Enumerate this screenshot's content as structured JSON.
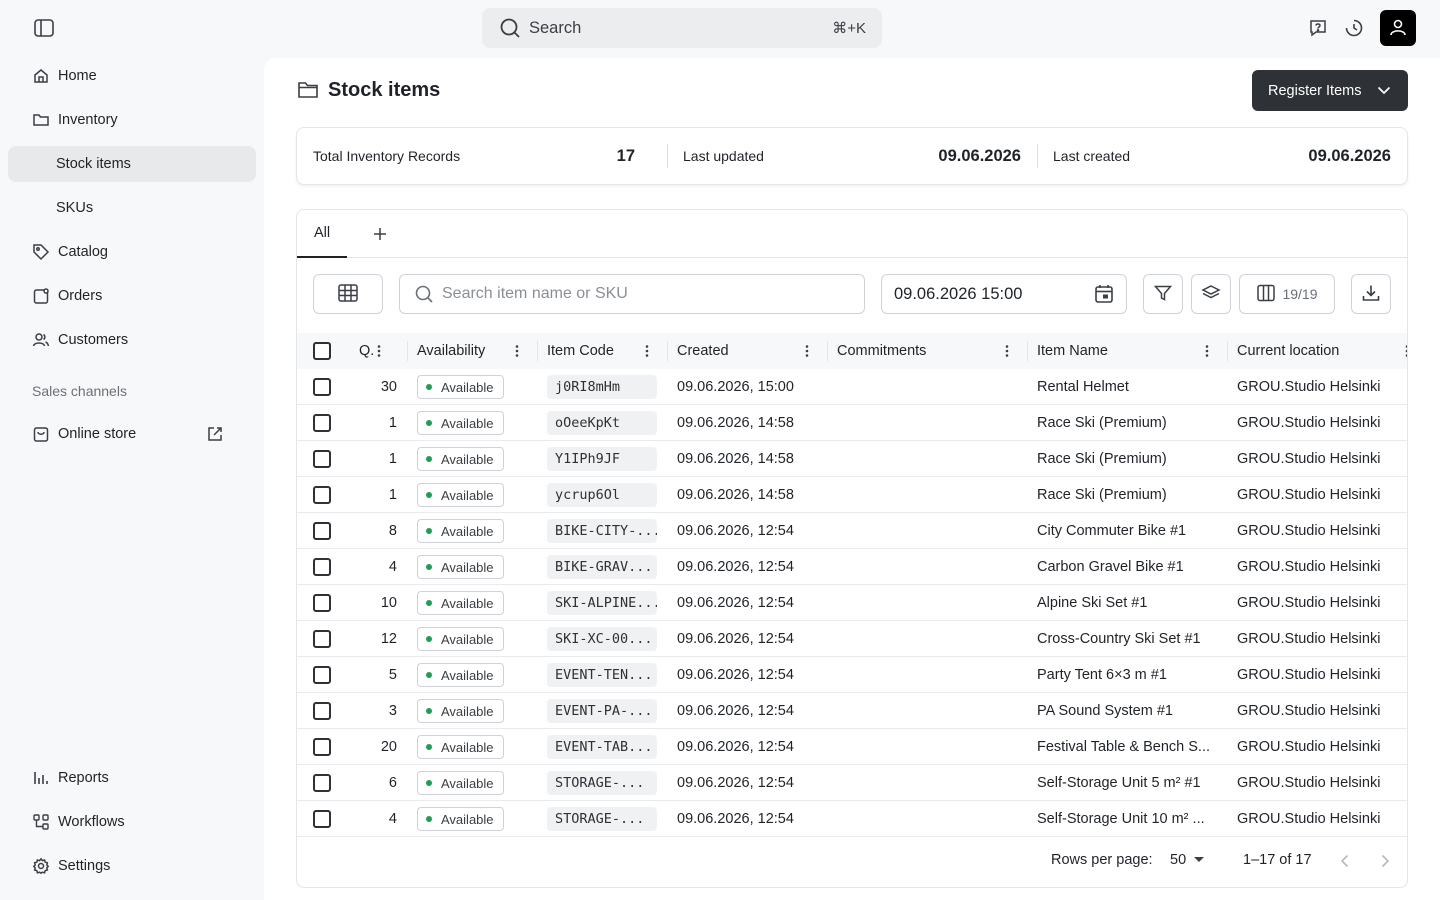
{
  "topbar": {
    "search_label": "Search",
    "search_shortcut": "⌘+K",
    "icons": [
      "sidebar-toggle-icon",
      "help-icon",
      "history-icon",
      "user-icon"
    ]
  },
  "sidebar": {
    "items": [
      {
        "label": "Home",
        "icon": "home-icon"
      },
      {
        "label": "Inventory",
        "icon": "folder-icon"
      },
      {
        "label": "Stock items",
        "active": true
      },
      {
        "label": "SKUs"
      },
      {
        "label": "Catalog",
        "icon": "tag-icon"
      },
      {
        "label": "Orders",
        "icon": "orders-icon"
      },
      {
        "label": "Customers",
        "icon": "users-icon"
      }
    ],
    "section_label": "Sales channels",
    "online_store": "Online store",
    "bottom_items": [
      {
        "label": "Reports",
        "icon": "chart-icon"
      },
      {
        "label": "Workflows",
        "icon": "workflow-icon"
      },
      {
        "label": "Settings",
        "icon": "gear-icon"
      }
    ]
  },
  "page": {
    "title": "Stock items",
    "register_button": "Register Items"
  },
  "stats": {
    "total_label": "Total Inventory Records",
    "total_value": "17",
    "updated_label": "Last updated",
    "updated_value": "09.06.2026",
    "created_label": "Last created",
    "created_value": "09.06.2026"
  },
  "tabs": {
    "all_label": "All"
  },
  "toolbar": {
    "search_placeholder": "Search item name or SKU",
    "date_value": "09.06.2026 15:00",
    "columns_count": "19/19"
  },
  "table": {
    "headers": {
      "qty": "Q.",
      "availability": "Availability",
      "item_code": "Item Code",
      "created": "Created",
      "commitments": "Commitments",
      "item_name": "Item Name",
      "location": "Current location"
    },
    "rows": [
      {
        "qty": "30",
        "status": "Available",
        "code": "j0RI8mHm",
        "created": "09.06.2026, 15:00",
        "commitments": "",
        "name": "Rental Helmet",
        "location": "GROU.Studio Helsinki"
      },
      {
        "qty": "1",
        "status": "Available",
        "code": "oOeeKpKt",
        "created": "09.06.2026, 14:58",
        "commitments": "",
        "name": "Race Ski (Premium)",
        "location": "GROU.Studio Helsinki"
      },
      {
        "qty": "1",
        "status": "Available",
        "code": "Y1IPh9JF",
        "created": "09.06.2026, 14:58",
        "commitments": "",
        "name": "Race Ski (Premium)",
        "location": "GROU.Studio Helsinki"
      },
      {
        "qty": "1",
        "status": "Available",
        "code": "ycrup6Ol",
        "created": "09.06.2026, 14:58",
        "commitments": "",
        "name": "Race Ski (Premium)",
        "location": "GROU.Studio Helsinki"
      },
      {
        "qty": "8",
        "status": "Available",
        "code": "BIKE-CITY-...",
        "created": "09.06.2026, 12:54",
        "commitments": "",
        "name": "City Commuter Bike #1",
        "location": "GROU.Studio Helsinki"
      },
      {
        "qty": "4",
        "status": "Available",
        "code": "BIKE-GRAV...",
        "created": "09.06.2026, 12:54",
        "commitments": "",
        "name": "Carbon Gravel Bike #1",
        "location": "GROU.Studio Helsinki"
      },
      {
        "qty": "10",
        "status": "Available",
        "code": "SKI-ALPINE...",
        "created": "09.06.2026, 12:54",
        "commitments": "",
        "name": "Alpine Ski Set #1",
        "location": "GROU.Studio Helsinki"
      },
      {
        "qty": "12",
        "status": "Available",
        "code": "SKI-XC-00...",
        "created": "09.06.2026, 12:54",
        "commitments": "",
        "name": "Cross-Country Ski Set #1",
        "location": "GROU.Studio Helsinki"
      },
      {
        "qty": "5",
        "status": "Available",
        "code": "EVENT-TEN...",
        "created": "09.06.2026, 12:54",
        "commitments": "",
        "name": "Party Tent 6×3 m #1",
        "location": "GROU.Studio Helsinki"
      },
      {
        "qty": "3",
        "status": "Available",
        "code": "EVENT-PA-...",
        "created": "09.06.2026, 12:54",
        "commitments": "",
        "name": "PA Sound System #1",
        "location": "GROU.Studio Helsinki"
      },
      {
        "qty": "20",
        "status": "Available",
        "code": "EVENT-TAB...",
        "created": "09.06.2026, 12:54",
        "commitments": "",
        "name": "Festival Table & Bench S...",
        "location": "GROU.Studio Helsinki"
      },
      {
        "qty": "6",
        "status": "Available",
        "code": "STORAGE-...",
        "created": "09.06.2026, 12:54",
        "commitments": "",
        "name": "Self-Storage Unit 5 m² #1",
        "location": "GROU.Studio Helsinki"
      },
      {
        "qty": "4",
        "status": "Available",
        "code": "STORAGE-...",
        "created": "09.06.2026, 12:54",
        "commitments": "",
        "name": "Self-Storage Unit 10 m² ...",
        "location": "GROU.Studio Helsinki"
      }
    ]
  },
  "pagination": {
    "rows_per_page_label": "Rows per page:",
    "rows_per_page_value": "50",
    "range": "1–17 of 17"
  },
  "colors": {
    "accent_dark": "#2e3135",
    "available_dot": "#1f9d55"
  }
}
